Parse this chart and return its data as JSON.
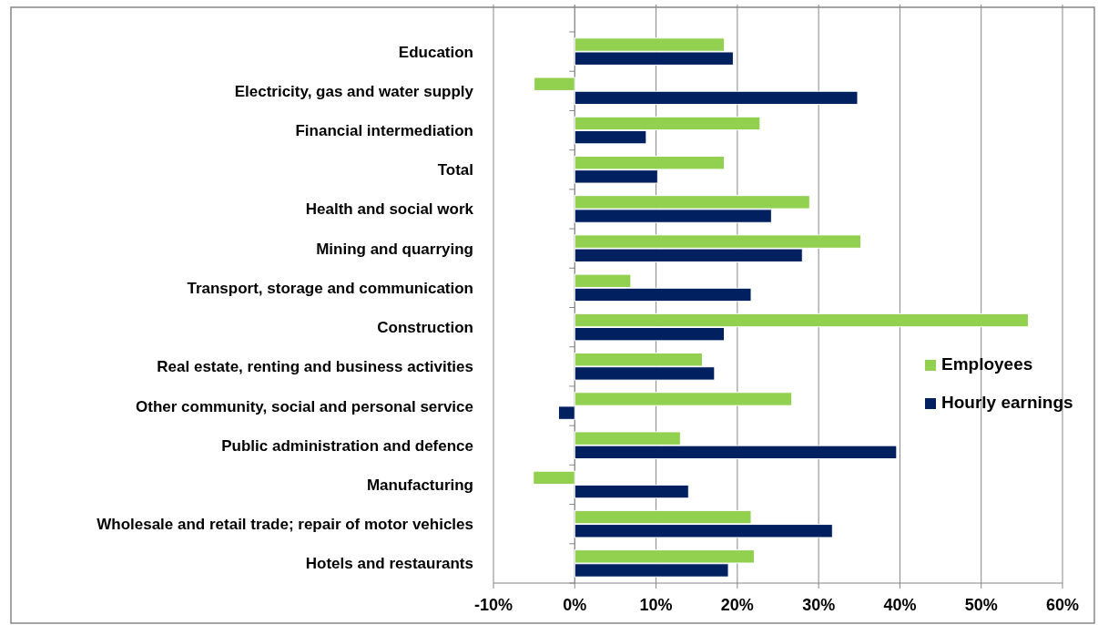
{
  "chart_data": {
    "type": "bar",
    "orientation": "horizontal",
    "categories": [
      "Education",
      "Electricity, gas and water supply",
      "Financial intermediation",
      "Total",
      "Health and social work",
      "Mining and quarrying",
      "Transport, storage and communication",
      "Construction",
      "Real estate, renting and business activities",
      "Other community, social and personal service",
      "Public administration and defence",
      "Manufacturing",
      "Wholesale and retail trade; repair of motor vehicles",
      "Hotels and restaurants"
    ],
    "series": [
      {
        "name": "Employees",
        "color": "#92d050",
        "values": [
          18.4,
          -5.0,
          22.8,
          18.4,
          28.9,
          35.2,
          6.9,
          55.8,
          15.7,
          26.7,
          13.0,
          -5.1,
          21.7,
          22.1
        ]
      },
      {
        "name": "Hourly earnings",
        "color": "#002060",
        "values": [
          19.5,
          34.8,
          8.8,
          10.2,
          24.2,
          28.0,
          21.7,
          18.4,
          17.2,
          -2.0,
          39.6,
          14.0,
          31.7,
          18.9
        ]
      }
    ],
    "xlim": [
      -10,
      60
    ],
    "xticks": [
      {
        "value": -10,
        "label": "-10%"
      },
      {
        "value": 0,
        "label": "0%"
      },
      {
        "value": 10,
        "label": "10%"
      },
      {
        "value": 20,
        "label": "20%"
      },
      {
        "value": 30,
        "label": "30%"
      },
      {
        "value": 40,
        "label": "40%"
      },
      {
        "value": 50,
        "label": "50%"
      },
      {
        "value": 60,
        "label": "60%"
      }
    ],
    "grid": "x",
    "legend": "right"
  }
}
